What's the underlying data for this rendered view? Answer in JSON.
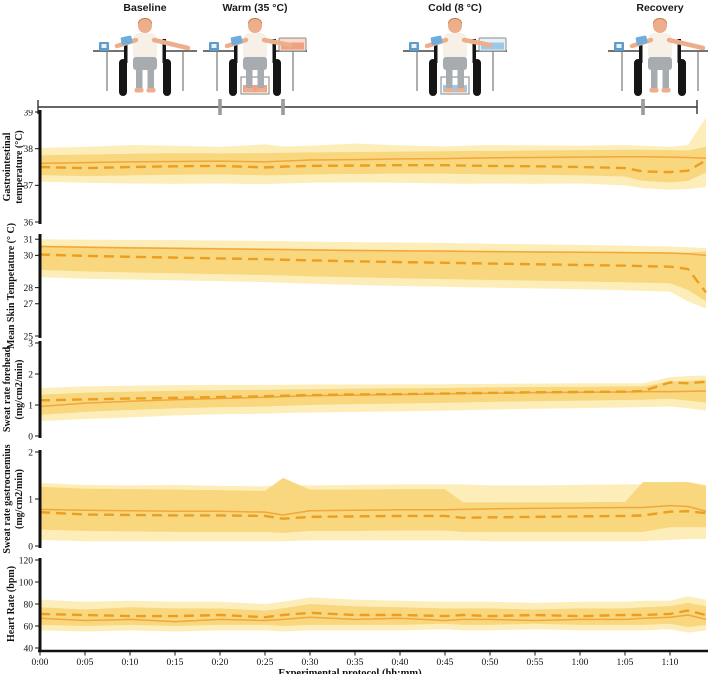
{
  "figure": {
    "phases": [
      {
        "label": "Baseline",
        "variant": "none"
      },
      {
        "label": "Warm (35 °C)",
        "variant": "warm"
      },
      {
        "label": "Cold (8 °C)",
        "variant": "cold"
      },
      {
        "label": "Recovery",
        "variant": "none"
      }
    ],
    "timeline": {
      "start_min": 0,
      "end_min": 73,
      "phase_boundary_marks_min": [
        20,
        27,
        67
      ]
    }
  },
  "xaxis": {
    "label": "Experimental protocol (hh:mm)",
    "xlim": [
      0,
      74
    ],
    "ticks": [
      {
        "min": 0,
        "label": "0:00"
      },
      {
        "min": 5,
        "label": "0:05"
      },
      {
        "min": 10,
        "label": "0:10"
      },
      {
        "min": 15,
        "label": "0:15"
      },
      {
        "min": 20,
        "label": "0:20"
      },
      {
        "min": 25,
        "label": "0:25"
      },
      {
        "min": 30,
        "label": "0:30"
      },
      {
        "min": 35,
        "label": "0:35"
      },
      {
        "min": 40,
        "label": "0:40"
      },
      {
        "min": 45,
        "label": "0:45"
      },
      {
        "min": 50,
        "label": "0:50"
      },
      {
        "min": 55,
        "label": "0:55"
      },
      {
        "min": 60,
        "label": "1:00"
      },
      {
        "min": 65,
        "label": "1:05"
      },
      {
        "min": 70,
        "label": "1:10"
      }
    ]
  },
  "colors": {
    "band_outer": "#FDEEB9",
    "band_inner": "#F8D77F",
    "line_solid": "#F2A73B",
    "line_dashed": "#ED9E1F",
    "axis": "#111111",
    "timeline_line": "#333333",
    "timeline_mark": "#9A9A9A"
  },
  "chart_data": [
    {
      "type": "line",
      "ylabel_lines": [
        "Gastrointestinal",
        "temperature (°C)"
      ],
      "ylim": [
        36,
        39
      ],
      "yticks": [
        39,
        38,
        37,
        36
      ],
      "x_min": [
        0,
        5,
        10,
        15,
        20,
        25,
        27,
        30,
        35,
        40,
        45,
        47,
        50,
        55,
        60,
        65,
        67,
        70,
        72,
        74
      ],
      "series": [
        {
          "name": "solid",
          "style": "solid",
          "values": [
            37.6,
            37.62,
            37.64,
            37.65,
            37.66,
            37.64,
            37.66,
            37.69,
            37.7,
            37.72,
            37.73,
            37.74,
            37.75,
            37.76,
            37.77,
            37.78,
            37.78,
            37.77,
            37.76,
            37.74
          ]
        },
        {
          "name": "dashed",
          "style": "dashed",
          "values": [
            37.5,
            37.47,
            37.5,
            37.52,
            37.53,
            37.49,
            37.51,
            37.53,
            37.54,
            37.55,
            37.55,
            37.54,
            37.53,
            37.52,
            37.5,
            37.47,
            37.38,
            37.36,
            37.4,
            37.68
          ]
        }
      ],
      "bands": {
        "outer_high": [
          38.02,
          38.05,
          38.1,
          38.08,
          38.05,
          38.12,
          38.06,
          38.08,
          38.14,
          38.09,
          38.06,
          38.08,
          38.1,
          38.09,
          38.08,
          38.1,
          38.08,
          38.05,
          38.1,
          38.85
        ],
        "outer_low": [
          37.1,
          37.07,
          37.05,
          37.04,
          37.05,
          37.03,
          37.05,
          37.07,
          37.08,
          37.07,
          37.05,
          37.04,
          37.05,
          37.04,
          37.05,
          37.0,
          36.92,
          36.88,
          36.9,
          36.95
        ],
        "inner_high": [
          37.82,
          37.84,
          37.86,
          37.88,
          37.87,
          37.88,
          37.89,
          37.9,
          37.91,
          37.92,
          37.93,
          37.94,
          37.94,
          37.95,
          37.96,
          37.97,
          37.97,
          37.96,
          37.95,
          38.05
        ],
        "inner_low": [
          37.28,
          37.25,
          37.27,
          37.29,
          37.3,
          37.27,
          37.28,
          37.3,
          37.31,
          37.32,
          37.32,
          37.31,
          37.3,
          37.29,
          37.27,
          37.24,
          37.12,
          37.08,
          37.12,
          37.35
        ]
      }
    },
    {
      "type": "line",
      "ylabel_lines": [
        "Mean Skin Tempetature (° C)"
      ],
      "ylim": [
        25,
        31.2
      ],
      "yticks": [
        31,
        30,
        28,
        27,
        25
      ],
      "x_min": [
        0,
        5,
        10,
        15,
        20,
        25,
        27,
        30,
        35,
        40,
        45,
        47,
        50,
        55,
        60,
        65,
        67,
        70,
        72,
        74
      ],
      "series": [
        {
          "name": "solid",
          "style": "solid",
          "values": [
            30.55,
            30.5,
            30.46,
            30.43,
            30.4,
            30.37,
            30.36,
            30.33,
            30.3,
            30.28,
            30.26,
            30.25,
            30.23,
            30.21,
            30.19,
            30.17,
            30.16,
            30.14,
            30.1,
            30.0
          ]
        },
        {
          "name": "dashed",
          "style": "dashed",
          "values": [
            30.05,
            29.97,
            29.91,
            29.86,
            29.81,
            29.76,
            29.73,
            29.69,
            29.63,
            29.58,
            29.54,
            29.52,
            29.49,
            29.45,
            29.4,
            29.36,
            29.33,
            29.3,
            29.15,
            27.7
          ]
        }
      ],
      "bands": {
        "outer_high": [
          31.0,
          30.97,
          30.96,
          30.95,
          30.92,
          30.9,
          30.88,
          30.85,
          30.82,
          30.79,
          30.77,
          30.75,
          30.72,
          30.69,
          30.65,
          30.6,
          30.57,
          30.55,
          30.5,
          30.45
        ],
        "outer_low": [
          28.65,
          28.55,
          28.5,
          28.45,
          28.4,
          28.34,
          28.3,
          28.25,
          28.16,
          28.1,
          28.05,
          28.02,
          28.0,
          27.95,
          27.9,
          27.84,
          27.8,
          27.75,
          27.15,
          26.7
        ],
        "inner_high": [
          30.62,
          30.57,
          30.53,
          30.5,
          30.47,
          30.44,
          30.42,
          30.4,
          30.37,
          30.34,
          30.32,
          30.31,
          30.29,
          30.27,
          30.25,
          30.23,
          30.21,
          30.2,
          30.17,
          30.25
        ],
        "inner_low": [
          29.1,
          29.0,
          28.94,
          28.89,
          28.84,
          28.78,
          28.75,
          28.7,
          28.64,
          28.58,
          28.53,
          28.5,
          28.47,
          28.43,
          28.38,
          28.33,
          28.3,
          28.27,
          27.85,
          27.15
        ]
      }
    },
    {
      "type": "line",
      "ylabel_lines": [
        "Sweat rate forehead",
        "(mg/cm2/min)"
      ],
      "ylim": [
        0,
        3
      ],
      "yticks": [
        3,
        2,
        1,
        0
      ],
      "x_min": [
        0,
        5,
        10,
        15,
        20,
        25,
        27,
        30,
        35,
        40,
        45,
        47,
        50,
        55,
        60,
        65,
        67,
        70,
        72,
        74
      ],
      "series": [
        {
          "name": "solid",
          "style": "solid",
          "values": [
            0.95,
            1.06,
            1.12,
            1.17,
            1.21,
            1.25,
            1.27,
            1.3,
            1.32,
            1.34,
            1.36,
            1.37,
            1.38,
            1.4,
            1.41,
            1.42,
            1.43,
            1.43,
            1.44,
            1.45
          ]
        },
        {
          "name": "dashed",
          "style": "dashed",
          "values": [
            1.15,
            1.18,
            1.21,
            1.23,
            1.26,
            1.28,
            1.3,
            1.32,
            1.34,
            1.35,
            1.37,
            1.38,
            1.39,
            1.41,
            1.42,
            1.43,
            1.45,
            1.73,
            1.7,
            1.75
          ]
        }
      ],
      "bands": {
        "outer_high": [
          1.55,
          1.6,
          1.62,
          1.64,
          1.65,
          1.65,
          1.65,
          1.66,
          1.66,
          1.67,
          1.67,
          1.68,
          1.68,
          1.69,
          1.7,
          1.7,
          1.7,
          1.9,
          1.93,
          1.95
        ],
        "outer_low": [
          0.48,
          0.55,
          0.6,
          0.66,
          0.7,
          0.72,
          0.74,
          0.76,
          0.78,
          0.8,
          0.82,
          0.83,
          0.85,
          0.88,
          0.9,
          0.92,
          0.93,
          0.95,
          0.9,
          0.82
        ],
        "inner_high": [
          1.33,
          1.4,
          1.43,
          1.46,
          1.48,
          1.49,
          1.5,
          1.51,
          1.53,
          1.54,
          1.55,
          1.56,
          1.57,
          1.58,
          1.59,
          1.6,
          1.6,
          1.76,
          1.78,
          1.8
        ],
        "inner_low": [
          0.68,
          0.78,
          0.84,
          0.89,
          0.93,
          0.95,
          0.97,
          1.0,
          1.03,
          1.05,
          1.07,
          1.08,
          1.1,
          1.12,
          1.14,
          1.16,
          1.17,
          1.2,
          1.14,
          1.08
        ]
      }
    },
    {
      "type": "line",
      "ylabel_lines": [
        "Sweat rate gastrocnemius",
        "(mg/cm2/min)"
      ],
      "ylim": [
        0,
        2
      ],
      "yticks": [
        2,
        1,
        0
      ],
      "x_min": [
        0,
        5,
        10,
        15,
        20,
        25,
        27,
        30,
        35,
        40,
        45,
        47,
        50,
        55,
        60,
        65,
        67,
        70,
        72,
        74
      ],
      "series": [
        {
          "name": "solid",
          "style": "solid",
          "values": [
            0.78,
            0.76,
            0.75,
            0.74,
            0.74,
            0.72,
            0.66,
            0.75,
            0.76,
            0.77,
            0.77,
            0.78,
            0.79,
            0.8,
            0.81,
            0.82,
            0.82,
            0.86,
            0.84,
            0.74
          ]
        },
        {
          "name": "dashed",
          "style": "dashed",
          "values": [
            0.72,
            0.67,
            0.66,
            0.65,
            0.65,
            0.64,
            0.58,
            0.62,
            0.63,
            0.64,
            0.64,
            0.6,
            0.61,
            0.62,
            0.63,
            0.64,
            0.65,
            0.73,
            0.74,
            0.7
          ]
        }
      ],
      "bands": {
        "outer_high": [
          1.34,
          1.3,
          1.29,
          1.3,
          1.28,
          1.27,
          1.3,
          1.29,
          1.3,
          1.31,
          1.31,
          1.31,
          1.29,
          1.29,
          1.3,
          1.31,
          1.31,
          1.36,
          1.36,
          1.3
        ],
        "outer_low": [
          0.13,
          0.1,
          0.1,
          0.1,
          0.1,
          0.1,
          0.1,
          0.12,
          0.12,
          0.12,
          0.12,
          0.12,
          0.1,
          0.1,
          0.1,
          0.1,
          0.1,
          0.13,
          0.15,
          0.15
        ],
        "inner_high": [
          1.26,
          1.22,
          1.21,
          1.2,
          1.19,
          1.17,
          1.45,
          1.2,
          1.2,
          1.21,
          1.21,
          0.93,
          0.93,
          0.93,
          0.93,
          0.94,
          1.36,
          1.36,
          1.36,
          1.28
        ],
        "inner_low": [
          0.35,
          0.32,
          0.31,
          0.3,
          0.3,
          0.3,
          0.28,
          0.32,
          0.32,
          0.33,
          0.33,
          0.3,
          0.3,
          0.3,
          0.3,
          0.3,
          0.3,
          0.4,
          0.4,
          0.4
        ]
      }
    },
    {
      "type": "line",
      "ylabel_lines": [
        "Heart Rate (bpm)"
      ],
      "ylim": [
        40,
        120
      ],
      "yticks": [
        120,
        100,
        80,
        60,
        40
      ],
      "x_min": [
        0,
        5,
        10,
        15,
        20,
        25,
        27,
        30,
        35,
        40,
        45,
        47,
        50,
        55,
        60,
        65,
        67,
        70,
        72,
        74
      ],
      "series": [
        {
          "name": "solid",
          "style": "solid",
          "values": [
            67,
            65,
            66,
            64,
            66,
            65,
            66,
            68,
            66,
            67,
            65,
            66,
            66,
            65,
            66,
            66,
            67,
            68,
            70,
            66
          ]
        },
        {
          "name": "dashed",
          "style": "dashed",
          "values": [
            71,
            70,
            69,
            69,
            70,
            68,
            70,
            72,
            70,
            70,
            69,
            70,
            69,
            70,
            69,
            70,
            70,
            71,
            74,
            70
          ]
        }
      ],
      "bands": {
        "outer_high": [
          84,
          82,
          83,
          82,
          82,
          80,
          82,
          86,
          84,
          83,
          82,
          82,
          82,
          81,
          82,
          82,
          83,
          83,
          87,
          84
        ],
        "outer_low": [
          56,
          55,
          56,
          55,
          56,
          56,
          55,
          56,
          56,
          56,
          57,
          56,
          56,
          57,
          56,
          56,
          56,
          57,
          54,
          56
        ],
        "inner_high": [
          77,
          75,
          77,
          76,
          76,
          74,
          76,
          80,
          78,
          77,
          76,
          76,
          76,
          75,
          76,
          76,
          77,
          78,
          81,
          78
        ],
        "inner_low": [
          61,
          60,
          61,
          60,
          61,
          61,
          60,
          61,
          61,
          61,
          62,
          61,
          61,
          62,
          61,
          61,
          61,
          62,
          59,
          61
        ]
      }
    }
  ]
}
